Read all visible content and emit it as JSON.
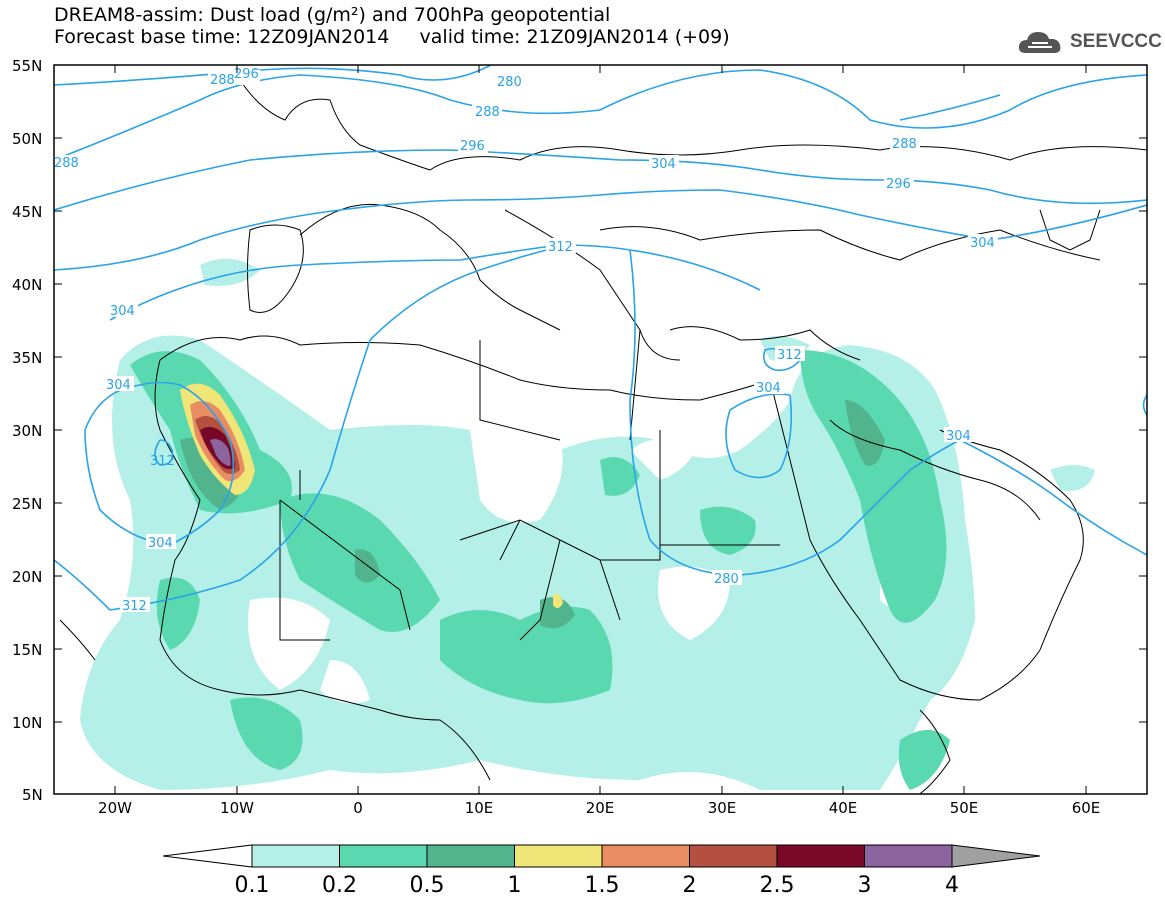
{
  "header": {
    "line1": "DREAM8-assim: Dust load (g/m²) and 700hPa geopotential",
    "line2": "Forecast base time: 12Z09JAN2014     valid time: 21Z09JAN2014 (+09)"
  },
  "logo": {
    "text": "SEEVCCC",
    "icon": "cloud-icon"
  },
  "map": {
    "lon_range": [
      -25,
      65
    ],
    "lat_range": [
      5,
      55
    ],
    "lat_ticks": [
      "55N",
      "50N",
      "45N",
      "40N",
      "35N",
      "30N",
      "25N",
      "20N",
      "15N",
      "10N",
      "5N"
    ],
    "lon_ticks": [
      "20W",
      "10W",
      "0",
      "10E",
      "20E",
      "30E",
      "40E",
      "50E",
      "60E"
    ],
    "contour_labels": [
      "280",
      "288",
      "296",
      "304",
      "312",
      "288",
      "288",
      "304",
      "304",
      "296",
      "304",
      "304",
      "312",
      "312",
      "304",
      "312",
      "296",
      "304",
      "288",
      "280"
    ]
  },
  "colorbar": {
    "labels": [
      "0.1",
      "0.2",
      "0.5",
      "1",
      "1.5",
      "2",
      "2.5",
      "3",
      "4"
    ],
    "colors": [
      "#b4f0e8",
      "#5ad9b0",
      "#52b48c",
      "#f0e678",
      "#e88c64",
      "#b45040",
      "#780828",
      "#8c64a0",
      "#a0a0a0"
    ],
    "undercolor": "#ffffff"
  },
  "colors": {
    "contour": "#2aa3e8",
    "dust_light": "#b4f0e8",
    "dust_med": "#5ad9b0",
    "dust_dark": "#52b48c"
  }
}
